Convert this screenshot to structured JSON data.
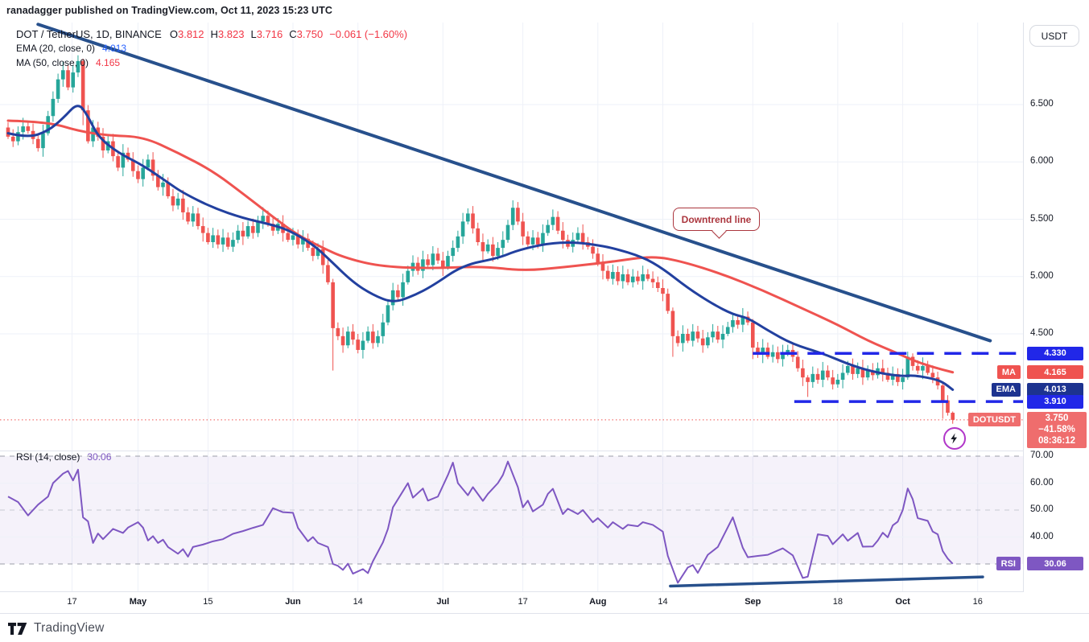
{
  "attribution": "ranadagger published on TradingView.com, Oct 11, 2023 15:23 UTC",
  "header": {
    "symbol": "DOT / TetherUS, 1D, BINANCE",
    "ohlc": [
      {
        "k": "O",
        "v": "3.812"
      },
      {
        "k": "H",
        "v": "3.823"
      },
      {
        "k": "L",
        "v": "3.716"
      },
      {
        "k": "C",
        "v": "3.750"
      }
    ],
    "change": "−0.061 (−1.60%)",
    "indicators": [
      {
        "label": "EMA (20, close, 0)",
        "value": "4.013"
      },
      {
        "label": "MA (50, close, 0)",
        "value": "4.165"
      }
    ]
  },
  "rsi_legend": {
    "label": "RSI (14, close)",
    "value": "30.06"
  },
  "axis": {
    "currency_button": "USDT",
    "price_ticks": [
      {
        "label": "6.500",
        "price": 6.5
      },
      {
        "label": "6.000",
        "price": 6.0
      },
      {
        "label": "5.500",
        "price": 5.5
      },
      {
        "label": "5.000",
        "price": 5.0
      },
      {
        "label": "4.500",
        "price": 4.5
      }
    ],
    "rsi_ticks": [
      {
        "label": "70.00",
        "value": 70
      },
      {
        "label": "60.00",
        "value": 60
      },
      {
        "label": "50.00",
        "value": 50
      },
      {
        "label": "40.00",
        "value": 40
      }
    ],
    "time_ticks": [
      {
        "label": "17",
        "i": 12.8,
        "bold": false
      },
      {
        "label": "May",
        "i": 26,
        "bold": true
      },
      {
        "label": "15",
        "i": 40,
        "bold": false
      },
      {
        "label": "Jun",
        "i": 57,
        "bold": true
      },
      {
        "label": "14",
        "i": 70,
        "bold": false
      },
      {
        "label": "Jul",
        "i": 87,
        "bold": true
      },
      {
        "label": "17",
        "i": 103,
        "bold": false
      },
      {
        "label": "Aug",
        "i": 118,
        "bold": true
      },
      {
        "label": "14",
        "i": 131,
        "bold": false
      },
      {
        "label": "Sep",
        "i": 149,
        "bold": true
      },
      {
        "label": "18",
        "i": 166,
        "bold": false
      },
      {
        "label": "Oct",
        "i": 179,
        "bold": true
      },
      {
        "label": "16",
        "i": 194,
        "bold": false
      }
    ]
  },
  "badges": {
    "resistance": {
      "text": "4.330",
      "price": 4.33
    },
    "ma": {
      "name": "MA",
      "text": "4.165",
      "price": 4.165
    },
    "ema": {
      "name": "EMA",
      "text": "4.013",
      "price": 4.013
    },
    "support": {
      "text": "3.910",
      "price": 3.91
    },
    "last": {
      "name": "DOTUSDT",
      "price_text": "3.750",
      "change_text": "−41.58%",
      "countdown": "08:36:12",
      "price": 3.75
    },
    "rsi": {
      "name": "RSI",
      "text": "30.06",
      "value": 30.06
    }
  },
  "callout": {
    "text": "Downtrend line"
  },
  "footer": {
    "brand": "TradingView"
  },
  "colors": {
    "candle_up": "#26a69a",
    "candle_down": "#ef5350",
    "ema_line": "#22409f",
    "ma_line": "#ef5350",
    "trend_line": "#27508c",
    "level_line": "#2127e8",
    "close_line": "#ef5350",
    "rsi_line": "#7e57c2",
    "rsi_band": "rgba(126,87,194,0.08)",
    "rsi_dash": "#9b9ea8",
    "rsi_dash_mid": "#c6c9d2",
    "grid": "#eef1f8",
    "axis_border": "#e0e3eb",
    "text": "#131722",
    "value_red": "#f23645",
    "value_blue": "#2962ff",
    "badge_blue": "#2127e8",
    "badge_navy": "#1d3390",
    "badge_red": "#ef5350",
    "badge_salmon": "#ef6d6d",
    "badge_purple": "#7e57c2",
    "callout_red": "#ab363e",
    "marker_ring": "#b136c9"
  },
  "chart_data": {
    "type": "candlestick",
    "symbol": "DOTUSDT",
    "exchange": "BINANCE",
    "timeframe": "1D",
    "title": "DOT / TetherUS, 1D, BINANCE",
    "price_axis_range": [
      3.48,
      7.22
    ],
    "rsi_axis_range": [
      20,
      73
    ],
    "last_candle": {
      "open": 3.812,
      "high": 3.823,
      "low": 3.716,
      "close": 3.75
    },
    "closes": [
      6.22,
      6.18,
      6.26,
      6.31,
      6.27,
      6.2,
      6.12,
      6.25,
      6.4,
      6.55,
      6.72,
      6.8,
      6.65,
      6.78,
      6.88,
      6.45,
      6.18,
      6.3,
      6.22,
      6.1,
      6.18,
      6.05,
      5.95,
      6.08,
      6.02,
      5.92,
      5.85,
      5.95,
      6.02,
      5.88,
      5.78,
      5.82,
      5.7,
      5.62,
      5.68,
      5.56,
      5.48,
      5.55,
      5.44,
      5.38,
      5.3,
      5.36,
      5.28,
      5.34,
      5.26,
      5.32,
      5.4,
      5.35,
      5.44,
      5.38,
      5.48,
      5.53,
      5.46,
      5.4,
      5.46,
      5.38,
      5.32,
      5.36,
      5.28,
      5.33,
      5.25,
      5.18,
      5.24,
      5.1,
      4.95,
      4.55,
      4.48,
      4.4,
      4.52,
      4.45,
      4.36,
      4.44,
      4.52,
      4.42,
      4.48,
      4.6,
      4.75,
      4.88,
      4.82,
      4.95,
      5.05,
      5.12,
      5.05,
      5.15,
      5.1,
      5.2,
      5.14,
      5.08,
      5.18,
      5.25,
      5.35,
      5.48,
      5.55,
      5.42,
      5.3,
      5.22,
      5.28,
      5.18,
      5.25,
      5.32,
      5.45,
      5.6,
      5.48,
      5.35,
      5.28,
      5.34,
      5.28,
      5.38,
      5.45,
      5.52,
      5.4,
      5.32,
      5.26,
      5.32,
      5.38,
      5.3,
      5.26,
      5.2,
      5.12,
      5.05,
      4.98,
      5.04,
      4.96,
      5.02,
      4.95,
      5.0,
      4.96,
      5.02,
      4.98,
      4.95,
      4.9,
      4.85,
      4.7,
      4.48,
      4.42,
      4.5,
      4.44,
      4.52,
      4.46,
      4.4,
      4.47,
      4.52,
      4.45,
      4.5,
      4.56,
      4.62,
      4.58,
      4.65,
      4.6,
      4.38,
      4.32,
      4.38,
      4.3,
      4.34,
      4.28,
      4.33,
      4.36,
      4.3,
      4.2,
      4.12,
      4.08,
      4.15,
      4.1,
      4.18,
      4.12,
      4.06,
      4.1,
      4.16,
      4.22,
      4.15,
      4.2,
      4.12,
      4.18,
      4.14,
      4.2,
      4.16,
      4.1,
      4.15,
      4.08,
      4.12,
      4.3,
      4.22,
      4.18,
      4.22,
      4.16,
      4.12,
      4.05,
      3.92,
      3.812,
      3.75
    ],
    "special_candles": {
      "14": [
        6.78,
        6.93,
        6.74,
        6.88
      ],
      "15": [
        6.88,
        6.9,
        6.32,
        6.45
      ],
      "65": [
        4.95,
        4.98,
        4.18,
        4.55
      ],
      "133": [
        4.7,
        4.73,
        4.3,
        4.48
      ],
      "149": [
        4.6,
        4.63,
        4.28,
        4.38
      ],
      "160": [
        4.12,
        4.14,
        3.95,
        4.08
      ],
      "180": [
        4.12,
        4.345,
        4.1,
        4.3
      ],
      "181": [
        4.3,
        4.33,
        4.18,
        4.22
      ],
      "187": [
        4.05,
        4.07,
        3.76,
        3.92
      ],
      "189": [
        3.812,
        3.823,
        3.716,
        3.75
      ]
    },
    "wick_pattern": [
      0.045,
      0.02,
      0.065,
      0.03,
      0.05,
      0.025,
      0.075,
      0.035
    ],
    "ema20": [
      [
        0,
        6.25
      ],
      [
        4,
        6.21
      ],
      [
        8,
        6.27
      ],
      [
        11,
        6.38
      ],
      [
        14,
        6.52
      ],
      [
        16,
        6.4
      ],
      [
        18,
        6.22
      ],
      [
        22,
        6.08
      ],
      [
        27,
        5.97
      ],
      [
        32,
        5.82
      ],
      [
        35,
        5.73
      ],
      [
        41,
        5.6
      ],
      [
        47,
        5.51
      ],
      [
        52,
        5.46
      ],
      [
        56,
        5.41
      ],
      [
        61,
        5.28
      ],
      [
        64,
        5.16
      ],
      [
        69,
        4.95
      ],
      [
        73,
        4.84
      ],
      [
        77,
        4.77
      ],
      [
        81,
        4.83
      ],
      [
        85,
        4.92
      ],
      [
        91,
        5.1
      ],
      [
        98,
        5.16
      ],
      [
        102,
        5.23
      ],
      [
        108,
        5.29
      ],
      [
        113,
        5.3
      ],
      [
        117,
        5.28
      ],
      [
        121,
        5.25
      ],
      [
        127,
        5.17
      ],
      [
        131,
        5.07
      ],
      [
        136,
        4.9
      ],
      [
        141,
        4.76
      ],
      [
        145,
        4.67
      ],
      [
        148,
        4.64
      ],
      [
        152,
        4.53
      ],
      [
        157,
        4.41
      ],
      [
        163,
        4.33
      ],
      [
        169,
        4.22
      ],
      [
        174,
        4.16
      ],
      [
        179,
        4.13
      ],
      [
        181,
        4.14
      ],
      [
        185,
        4.11
      ],
      [
        187,
        4.08
      ],
      [
        189,
        4.013
      ]
    ],
    "ma50": [
      [
        0,
        6.36
      ],
      [
        8,
        6.35
      ],
      [
        14,
        6.27
      ],
      [
        20,
        6.23
      ],
      [
        27,
        6.22
      ],
      [
        34,
        6.08
      ],
      [
        41,
        5.92
      ],
      [
        48,
        5.69
      ],
      [
        53,
        5.52
      ],
      [
        58,
        5.36
      ],
      [
        63,
        5.25
      ],
      [
        67,
        5.17
      ],
      [
        74,
        5.09
      ],
      [
        84,
        5.07
      ],
      [
        95,
        5.09
      ],
      [
        103,
        5.05
      ],
      [
        111,
        5.08
      ],
      [
        121,
        5.13
      ],
      [
        129,
        5.18
      ],
      [
        135,
        5.13
      ],
      [
        143,
        5.02
      ],
      [
        151,
        4.88
      ],
      [
        159,
        4.72
      ],
      [
        166,
        4.58
      ],
      [
        172,
        4.44
      ],
      [
        178,
        4.33
      ],
      [
        181,
        4.27
      ],
      [
        185,
        4.21
      ],
      [
        189,
        4.165
      ]
    ],
    "rsi14": [
      [
        0,
        55
      ],
      [
        2,
        53
      ],
      [
        4,
        48
      ],
      [
        6,
        52
      ],
      [
        8,
        55
      ],
      [
        9,
        60
      ],
      [
        11,
        63.5
      ],
      [
        12,
        64.5
      ],
      [
        13,
        61
      ],
      [
        14,
        65
      ],
      [
        15,
        47.3
      ],
      [
        16,
        45.8
      ],
      [
        17,
        37.8
      ],
      [
        18,
        41.3
      ],
      [
        19,
        39.2
      ],
      [
        21,
        43
      ],
      [
        23,
        41.5
      ],
      [
        24,
        43.5
      ],
      [
        26,
        45.5
      ],
      [
        27,
        43.5
      ],
      [
        28,
        38.7
      ],
      [
        29,
        40.3
      ],
      [
        30,
        37.8
      ],
      [
        31,
        39
      ],
      [
        32,
        36.3
      ],
      [
        34,
        33.8
      ],
      [
        35,
        35.5
      ],
      [
        36,
        32.7
      ],
      [
        37,
        36.3
      ],
      [
        39,
        37.2
      ],
      [
        41,
        38.4
      ],
      [
        43,
        39.2
      ],
      [
        45,
        41.2
      ],
      [
        47,
        42.2
      ],
      [
        49,
        43.4
      ],
      [
        51,
        44.5
      ],
      [
        53,
        50.7
      ],
      [
        55,
        49.2
      ],
      [
        57,
        49
      ],
      [
        58,
        43.4
      ],
      [
        60,
        38.4
      ],
      [
        61,
        40
      ],
      [
        62,
        37.8
      ],
      [
        64,
        36.3
      ],
      [
        65,
        30
      ],
      [
        66,
        29.3
      ],
      [
        67,
        27.8
      ],
      [
        68,
        30.1
      ],
      [
        69,
        26.4
      ],
      [
        71,
        28.1
      ],
      [
        72,
        26.6
      ],
      [
        73,
        31
      ],
      [
        75,
        38
      ],
      [
        76,
        43
      ],
      [
        77,
        51
      ],
      [
        79,
        57
      ],
      [
        80,
        60
      ],
      [
        81,
        54.6
      ],
      [
        83,
        58
      ],
      [
        84,
        53.5
      ],
      [
        86,
        55
      ],
      [
        88,
        63
      ],
      [
        89,
        67.6
      ],
      [
        90,
        60
      ],
      [
        92,
        55.5
      ],
      [
        93,
        58.5
      ],
      [
        95,
        53.4
      ],
      [
        96,
        56
      ],
      [
        98,
        60
      ],
      [
        99,
        63
      ],
      [
        100,
        68
      ],
      [
        102,
        58.5
      ],
      [
        103,
        51
      ],
      [
        104,
        53.5
      ],
      [
        105,
        49.5
      ],
      [
        107,
        52
      ],
      [
        108,
        56
      ],
      [
        109,
        57.9
      ],
      [
        111,
        48.5
      ],
      [
        112,
        50.5
      ],
      [
        114,
        48.5
      ],
      [
        115,
        50
      ],
      [
        117,
        45.5
      ],
      [
        118,
        47
      ],
      [
        120,
        43.5
      ],
      [
        121,
        45.5
      ],
      [
        123,
        43
      ],
      [
        124,
        44.5
      ],
      [
        126,
        44
      ],
      [
        127,
        45.5
      ],
      [
        129,
        44.5
      ],
      [
        131,
        42
      ],
      [
        132,
        33
      ],
      [
        134,
        23
      ],
      [
        136,
        28.7
      ],
      [
        137,
        29.6
      ],
      [
        138,
        26.7
      ],
      [
        140,
        33.4
      ],
      [
        142,
        36.3
      ],
      [
        145,
        47.3
      ],
      [
        147,
        36
      ],
      [
        148,
        32.5
      ],
      [
        150,
        33
      ],
      [
        152,
        33.4
      ],
      [
        155,
        35.8
      ],
      [
        157,
        33.2
      ],
      [
        159,
        24.8
      ],
      [
        160,
        25.3
      ],
      [
        162,
        41
      ],
      [
        164,
        40.4
      ],
      [
        165,
        37.3
      ],
      [
        167,
        41
      ],
      [
        168,
        38.6
      ],
      [
        170,
        41.5
      ],
      [
        171,
        36.4
      ],
      [
        173,
        36.5
      ],
      [
        174,
        38.7
      ],
      [
        175,
        41.6
      ],
      [
        176,
        39.9
      ],
      [
        177,
        44.3
      ],
      [
        178,
        45.7
      ],
      [
        179,
        50
      ],
      [
        180,
        58
      ],
      [
        181,
        54
      ],
      [
        182,
        47
      ],
      [
        183,
        46.5
      ],
      [
        184,
        46
      ],
      [
        185,
        42
      ],
      [
        186,
        41
      ],
      [
        187,
        34.8
      ],
      [
        188,
        32
      ],
      [
        189,
        30.06
      ]
    ],
    "levels": [
      {
        "price": 4.33,
        "from_index": 149
      },
      {
        "price": 3.91,
        "from_index": 157.3
      }
    ],
    "last_price_line": 3.75,
    "downtrend_line": {
      "from": [
        6,
        7.2
      ],
      "to": [
        196.5,
        4.44
      ]
    },
    "rsi_trendline": {
      "from": [
        132.5,
        21.8
      ],
      "to": [
        195,
        25.2
      ]
    },
    "rsi_overbought": 70,
    "rsi_midline": 50,
    "rsi_oversold": 30
  }
}
